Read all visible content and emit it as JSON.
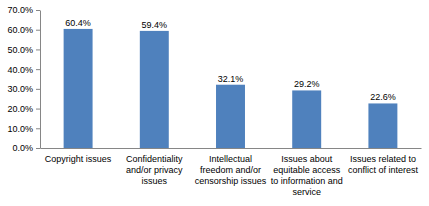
{
  "chart_data": {
    "type": "bar",
    "categories": [
      "Copyright issues",
      "Confidentiality and/or privacy issues",
      "Intellectual freedom and/or censorship issues",
      "Issues about equitable access to information and service",
      "Issues related to conflict of interest"
    ],
    "values": [
      60.4,
      59.4,
      32.1,
      29.2,
      22.6
    ],
    "value_labels": [
      "60.4%",
      "59.4%",
      "32.1%",
      "29.2%",
      "22.6%"
    ],
    "color": "#4f81bd",
    "ylim": [
      0,
      70
    ],
    "yticks": [
      {
        "value": 0,
        "label": "0.0%"
      },
      {
        "value": 10,
        "label": "10.0%"
      },
      {
        "value": 20,
        "label": "20.0%"
      },
      {
        "value": 30,
        "label": "30.0%"
      },
      {
        "value": 40,
        "label": "40.0%"
      },
      {
        "value": 50,
        "label": "50.0%"
      },
      {
        "value": 60,
        "label": "60.0%"
      },
      {
        "value": 70,
        "label": "70.0%"
      }
    ],
    "grid": false,
    "data_labels": true
  }
}
